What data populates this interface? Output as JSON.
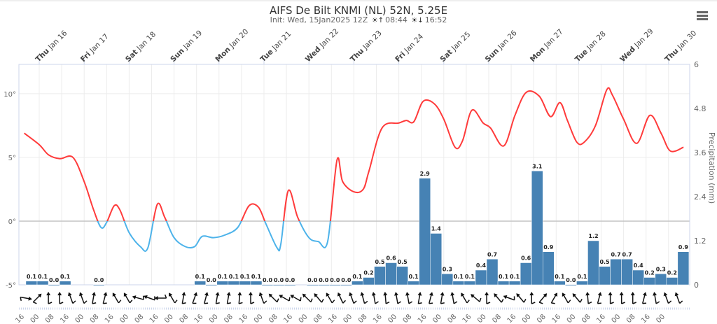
{
  "header": {
    "title": "AIFS De Bilt KNMI (NL) 52N, 5.25E",
    "init": "Init: Wed, 15Jan2025 12Z",
    "sunrise": "08:44",
    "sunset": "16:52",
    "sunrise_icon": "sunrise-icon",
    "sunset_icon": "sunset-icon",
    "menu_icon": "hamburger-menu-icon"
  },
  "chart_data": {
    "type": "line+bar",
    "colors": {
      "temp_above_zero": "#ff3b3b",
      "temp_below_zero": "#4db3ea",
      "precip": "#4682b4",
      "wind": "#111111"
    },
    "day_labels": [
      {
        "date": "2025-01-16",
        "weekday": "Thu",
        "label": "Jan 16"
      },
      {
        "date": "2025-01-17",
        "weekday": "Fri",
        "label": "Jan 17"
      },
      {
        "date": "2025-01-18",
        "weekday": "Sat",
        "label": "Jan 18"
      },
      {
        "date": "2025-01-19",
        "weekday": "Sun",
        "label": "Jan 19"
      },
      {
        "date": "2025-01-20",
        "weekday": "Mon",
        "label": "Jan 20"
      },
      {
        "date": "2025-01-21",
        "weekday": "Tue",
        "label": "Jan 21"
      },
      {
        "date": "2025-01-22",
        "weekday": "Wed",
        "label": "Jan 22"
      },
      {
        "date": "2025-01-23",
        "weekday": "Thu",
        "label": "Jan 23"
      },
      {
        "date": "2025-01-24",
        "weekday": "Fri",
        "label": "Jan 24"
      },
      {
        "date": "2025-01-25",
        "weekday": "Sat",
        "label": "Jan 25"
      },
      {
        "date": "2025-01-26",
        "weekday": "Sun",
        "label": "Jan 26"
      },
      {
        "date": "2025-01-27",
        "weekday": "Mon",
        "label": "Jan 27"
      },
      {
        "date": "2025-01-28",
        "weekday": "Tue",
        "label": "Jan 28"
      },
      {
        "date": "2025-01-29",
        "weekday": "Wed",
        "label": "Jan 29"
      },
      {
        "date": "2025-01-30",
        "weekday": "Thu",
        "label": "Jan 30"
      }
    ],
    "hour_labels": [
      "16",
      "00",
      "08",
      "16",
      "00",
      "08",
      "16",
      "00",
      "08",
      "16",
      "00",
      "08",
      "16",
      "00",
      "08",
      "16",
      "00",
      "08",
      "16",
      "00",
      "08",
      "16",
      "00",
      "08",
      "16",
      "00",
      "08",
      "16",
      "00",
      "08",
      "16",
      "00",
      "08",
      "16",
      "00",
      "08",
      "16",
      "00",
      "08",
      "16",
      "00",
      "08",
      "16",
      "00"
    ],
    "y_left": {
      "ylim": [
        -5,
        12.3
      ],
      "ticks": [
        "-5°",
        "0°",
        "5°",
        "10°"
      ],
      "tick_values": [
        -5,
        0,
        5,
        10
      ]
    },
    "y_right": {
      "label": "Precipitation (mm)",
      "ylim": [
        0,
        6
      ],
      "ticks": [
        "0",
        "1.2",
        "2.4",
        "3.6",
        "4.8",
        "6"
      ],
      "tick_values": [
        0,
        1.2,
        2.4,
        3.6,
        4.8,
        6
      ]
    },
    "temperature": [
      [
        "2025-01-15T16",
        6.9
      ],
      [
        "2025-01-16T00",
        6.0
      ],
      [
        "2025-01-16T05",
        5.2
      ],
      [
        "2025-01-16T11",
        4.9
      ],
      [
        "2025-01-16T18",
        5.0
      ],
      [
        "2025-01-17T00",
        3.1
      ],
      [
        "2025-01-17T05",
        0.9
      ],
      [
        "2025-01-17T09",
        -0.5
      ],
      [
        "2025-01-17T12",
        -0.1
      ],
      [
        "2025-01-17T16",
        1.2
      ],
      [
        "2025-01-17T19",
        0.9
      ],
      [
        "2025-01-18T00",
        -0.9
      ],
      [
        "2025-01-18T06",
        -2.0
      ],
      [
        "2025-01-18T10",
        -2.1
      ],
      [
        "2025-01-18T15",
        1.3
      ],
      [
        "2025-01-18T19",
        0.3
      ],
      [
        "2025-01-19T00",
        -1.3
      ],
      [
        "2025-01-19T06",
        -2.0
      ],
      [
        "2025-01-19T11",
        -2.0
      ],
      [
        "2025-01-19T15",
        -1.2
      ],
      [
        "2025-01-19T21",
        -1.3
      ],
      [
        "2025-01-20T03",
        -1.1
      ],
      [
        "2025-01-20T10",
        -0.5
      ],
      [
        "2025-01-20T16",
        1.2
      ],
      [
        "2025-01-20T21",
        1.1
      ],
      [
        "2025-01-21T01",
        -0.2
      ],
      [
        "2025-01-21T07",
        -2.1
      ],
      [
        "2025-01-21T09",
        -1.8
      ],
      [
        "2025-01-21T13",
        2.4
      ],
      [
        "2025-01-21T18",
        0.3
      ],
      [
        "2025-01-22T00",
        -1.3
      ],
      [
        "2025-01-22T05",
        -1.6
      ],
      [
        "2025-01-22T10",
        -1.6
      ],
      [
        "2025-01-22T15",
        4.8
      ],
      [
        "2025-01-22T18",
        3.1
      ],
      [
        "2025-01-23T00",
        2.3
      ],
      [
        "2025-01-23T05",
        2.5
      ],
      [
        "2025-01-23T08",
        3.9
      ],
      [
        "2025-01-23T15",
        7.3
      ],
      [
        "2025-01-24T00",
        7.7
      ],
      [
        "2025-01-24T04",
        7.9
      ],
      [
        "2025-01-24T08",
        7.8
      ],
      [
        "2025-01-24T13",
        9.4
      ],
      [
        "2025-01-24T19",
        9.2
      ],
      [
        "2025-01-25T00",
        8.0
      ],
      [
        "2025-01-25T06",
        5.8
      ],
      [
        "2025-01-25T10",
        6.3
      ],
      [
        "2025-01-25T15",
        8.7
      ],
      [
        "2025-01-25T21",
        7.7
      ],
      [
        "2025-01-26T01",
        7.3
      ],
      [
        "2025-01-26T08",
        5.9
      ],
      [
        "2025-01-26T14",
        8.3
      ],
      [
        "2025-01-26T20",
        10.1
      ],
      [
        "2025-01-27T03",
        9.8
      ],
      [
        "2025-01-27T09",
        8.2
      ],
      [
        "2025-01-27T14",
        9.3
      ],
      [
        "2025-01-27T18",
        7.9
      ],
      [
        "2025-01-27T23",
        6.2
      ],
      [
        "2025-01-28T03",
        6.2
      ],
      [
        "2025-01-28T09",
        7.5
      ],
      [
        "2025-01-28T15",
        10.3
      ],
      [
        "2025-01-28T18",
        9.9
      ],
      [
        "2025-01-29T00",
        8.0
      ],
      [
        "2025-01-29T07",
        6.1
      ],
      [
        "2025-01-29T14",
        8.3
      ],
      [
        "2025-01-29T20",
        6.9
      ],
      [
        "2025-01-30T01",
        5.5
      ],
      [
        "2025-01-30T08",
        5.8
      ]
    ],
    "precipitation": [
      [
        "2025-01-15T18",
        0.1
      ],
      [
        "2025-01-16T00",
        0.1
      ],
      [
        "2025-01-16T06",
        0.0
      ],
      [
        "2025-01-16T12",
        0.1
      ],
      [
        "2025-01-17T06",
        0.0
      ],
      [
        "2025-01-19T12",
        0.1
      ],
      [
        "2025-01-19T18",
        0.0
      ],
      [
        "2025-01-20T00",
        0.1
      ],
      [
        "2025-01-20T06",
        0.1
      ],
      [
        "2025-01-20T12",
        0.1
      ],
      [
        "2025-01-20T18",
        0.1
      ],
      [
        "2025-01-21T00",
        0.0
      ],
      [
        "2025-01-21T06",
        0.0
      ],
      [
        "2025-01-21T12",
        0.0
      ],
      [
        "2025-01-22T00",
        0.0
      ],
      [
        "2025-01-22T06",
        0.0
      ],
      [
        "2025-01-22T12",
        0.0
      ],
      [
        "2025-01-22T18",
        0.0
      ],
      [
        "2025-01-23T00",
        0.1
      ],
      [
        "2025-01-23T06",
        0.2
      ],
      [
        "2025-01-23T12",
        0.5
      ],
      [
        "2025-01-23T18",
        0.6
      ],
      [
        "2025-01-24T00",
        0.5
      ],
      [
        "2025-01-24T06",
        0.1
      ],
      [
        "2025-01-24T12",
        2.9
      ],
      [
        "2025-01-24T18",
        1.4
      ],
      [
        "2025-01-25T00",
        0.3
      ],
      [
        "2025-01-25T06",
        0.1
      ],
      [
        "2025-01-25T12",
        0.1
      ],
      [
        "2025-01-25T18",
        0.4
      ],
      [
        "2025-01-26T00",
        0.7
      ],
      [
        "2025-01-26T06",
        0.1
      ],
      [
        "2025-01-26T12",
        0.1
      ],
      [
        "2025-01-26T18",
        0.6
      ],
      [
        "2025-01-27T00",
        3.1
      ],
      [
        "2025-01-27T06",
        0.9
      ],
      [
        "2025-01-27T12",
        0.1
      ],
      [
        "2025-01-27T18",
        0.0
      ],
      [
        "2025-01-28T00",
        0.1
      ],
      [
        "2025-01-28T06",
        1.2
      ],
      [
        "2025-01-28T12",
        0.5
      ],
      [
        "2025-01-28T18",
        0.7
      ],
      [
        "2025-01-29T00",
        0.7
      ],
      [
        "2025-01-29T06",
        0.4
      ],
      [
        "2025-01-29T12",
        0.2
      ],
      [
        "2025-01-29T18",
        0.3
      ],
      [
        "2025-01-30T00",
        0.2
      ],
      [
        "2025-01-30T06",
        0.9
      ]
    ],
    "wind_direction_deg": [
      100,
      45,
      0,
      0,
      340,
      340,
      10,
      15,
      330,
      330,
      285,
      290,
      270,
      330,
      10,
      20,
      15,
      10,
      10,
      5,
      0,
      340,
      315,
      300,
      300,
      315,
      320,
      330,
      335,
      340,
      345,
      350,
      355,
      350,
      350,
      10,
      15,
      10,
      350,
      330,
      310,
      0,
      320,
      290,
      320,
      0,
      40,
      30,
      330,
      320,
      355,
      15,
      0,
      0,
      0,
      15,
      350,
      340,
      340
    ]
  }
}
